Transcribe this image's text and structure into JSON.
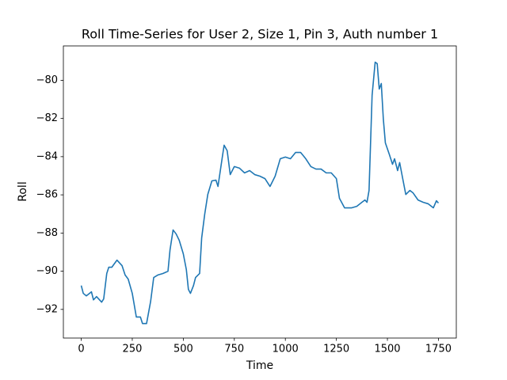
{
  "chart_data": {
    "type": "line",
    "title": "Roll Time-Series for User 2, Size 1, Pin 3, Auth number 1",
    "xlabel": "Time",
    "ylabel": "Roll",
    "color": "#1f77b4",
    "x": [
      0,
      10,
      25,
      50,
      60,
      75,
      100,
      110,
      125,
      135,
      150,
      175,
      200,
      215,
      230,
      250,
      270,
      290,
      300,
      320,
      340,
      355,
      375,
      400,
      425,
      435,
      450,
      465,
      480,
      500,
      515,
      525,
      535,
      550,
      560,
      580,
      590,
      605,
      620,
      640,
      660,
      670,
      690,
      700,
      715,
      730,
      750,
      775,
      800,
      825,
      850,
      875,
      900,
      925,
      950,
      975,
      1000,
      1025,
      1050,
      1075,
      1100,
      1125,
      1150,
      1175,
      1200,
      1225,
      1250,
      1265,
      1290,
      1325,
      1350,
      1375,
      1390,
      1400,
      1410,
      1425,
      1440,
      1450,
      1460,
      1470,
      1480,
      1490,
      1510,
      1525,
      1535,
      1550,
      1560,
      1575,
      1590,
      1610,
      1625,
      1650,
      1675,
      1700,
      1725,
      1740,
      1750
    ],
    "values": [
      -90.75,
      -91.16,
      -91.29,
      -91.08,
      -91.5,
      -91.33,
      -91.62,
      -91.45,
      -90.12,
      -89.79,
      -89.79,
      -89.42,
      -89.71,
      -90.2,
      -90.41,
      -91.16,
      -92.4,
      -92.4,
      -92.74,
      -92.74,
      -91.58,
      -90.33,
      -90.2,
      -90.12,
      -90.0,
      -88.88,
      -87.84,
      -88.05,
      -88.38,
      -89.09,
      -89.92,
      -90.95,
      -91.16,
      -90.75,
      -90.33,
      -90.12,
      -88.26,
      -87.01,
      -85.98,
      -85.27,
      -85.23,
      -85.56,
      -84.11,
      -83.4,
      -83.69,
      -84.94,
      -84.52,
      -84.6,
      -84.85,
      -84.73,
      -84.94,
      -85.02,
      -85.15,
      -85.56,
      -85.02,
      -84.11,
      -84.02,
      -84.11,
      -83.78,
      -83.78,
      -84.11,
      -84.52,
      -84.65,
      -84.65,
      -84.85,
      -84.85,
      -85.15,
      -86.18,
      -86.68,
      -86.68,
      -86.6,
      -86.39,
      -86.27,
      -86.39,
      -85.77,
      -80.79,
      -79.05,
      -79.13,
      -80.46,
      -80.17,
      -82.03,
      -83.28,
      -83.9,
      -84.4,
      -84.11,
      -84.73,
      -84.31,
      -85.15,
      -85.98,
      -85.77,
      -85.89,
      -86.27,
      -86.39,
      -86.47,
      -86.68,
      -86.31,
      -86.43
    ],
    "xlim": [
      -87.5,
      1837.5
    ],
    "ylim": [
      -93.5,
      -78.2
    ],
    "xticks": [
      0,
      250,
      500,
      750,
      1000,
      1250,
      1500,
      1750
    ],
    "yticks": [
      {
        "value": -92,
        "label": "−92"
      },
      {
        "value": -90,
        "label": "−90"
      },
      {
        "value": -88,
        "label": "−88"
      },
      {
        "value": -86,
        "label": "−86"
      },
      {
        "value": -84,
        "label": "−84"
      },
      {
        "value": -82,
        "label": "−82"
      },
      {
        "value": -80,
        "label": "−80"
      }
    ]
  }
}
